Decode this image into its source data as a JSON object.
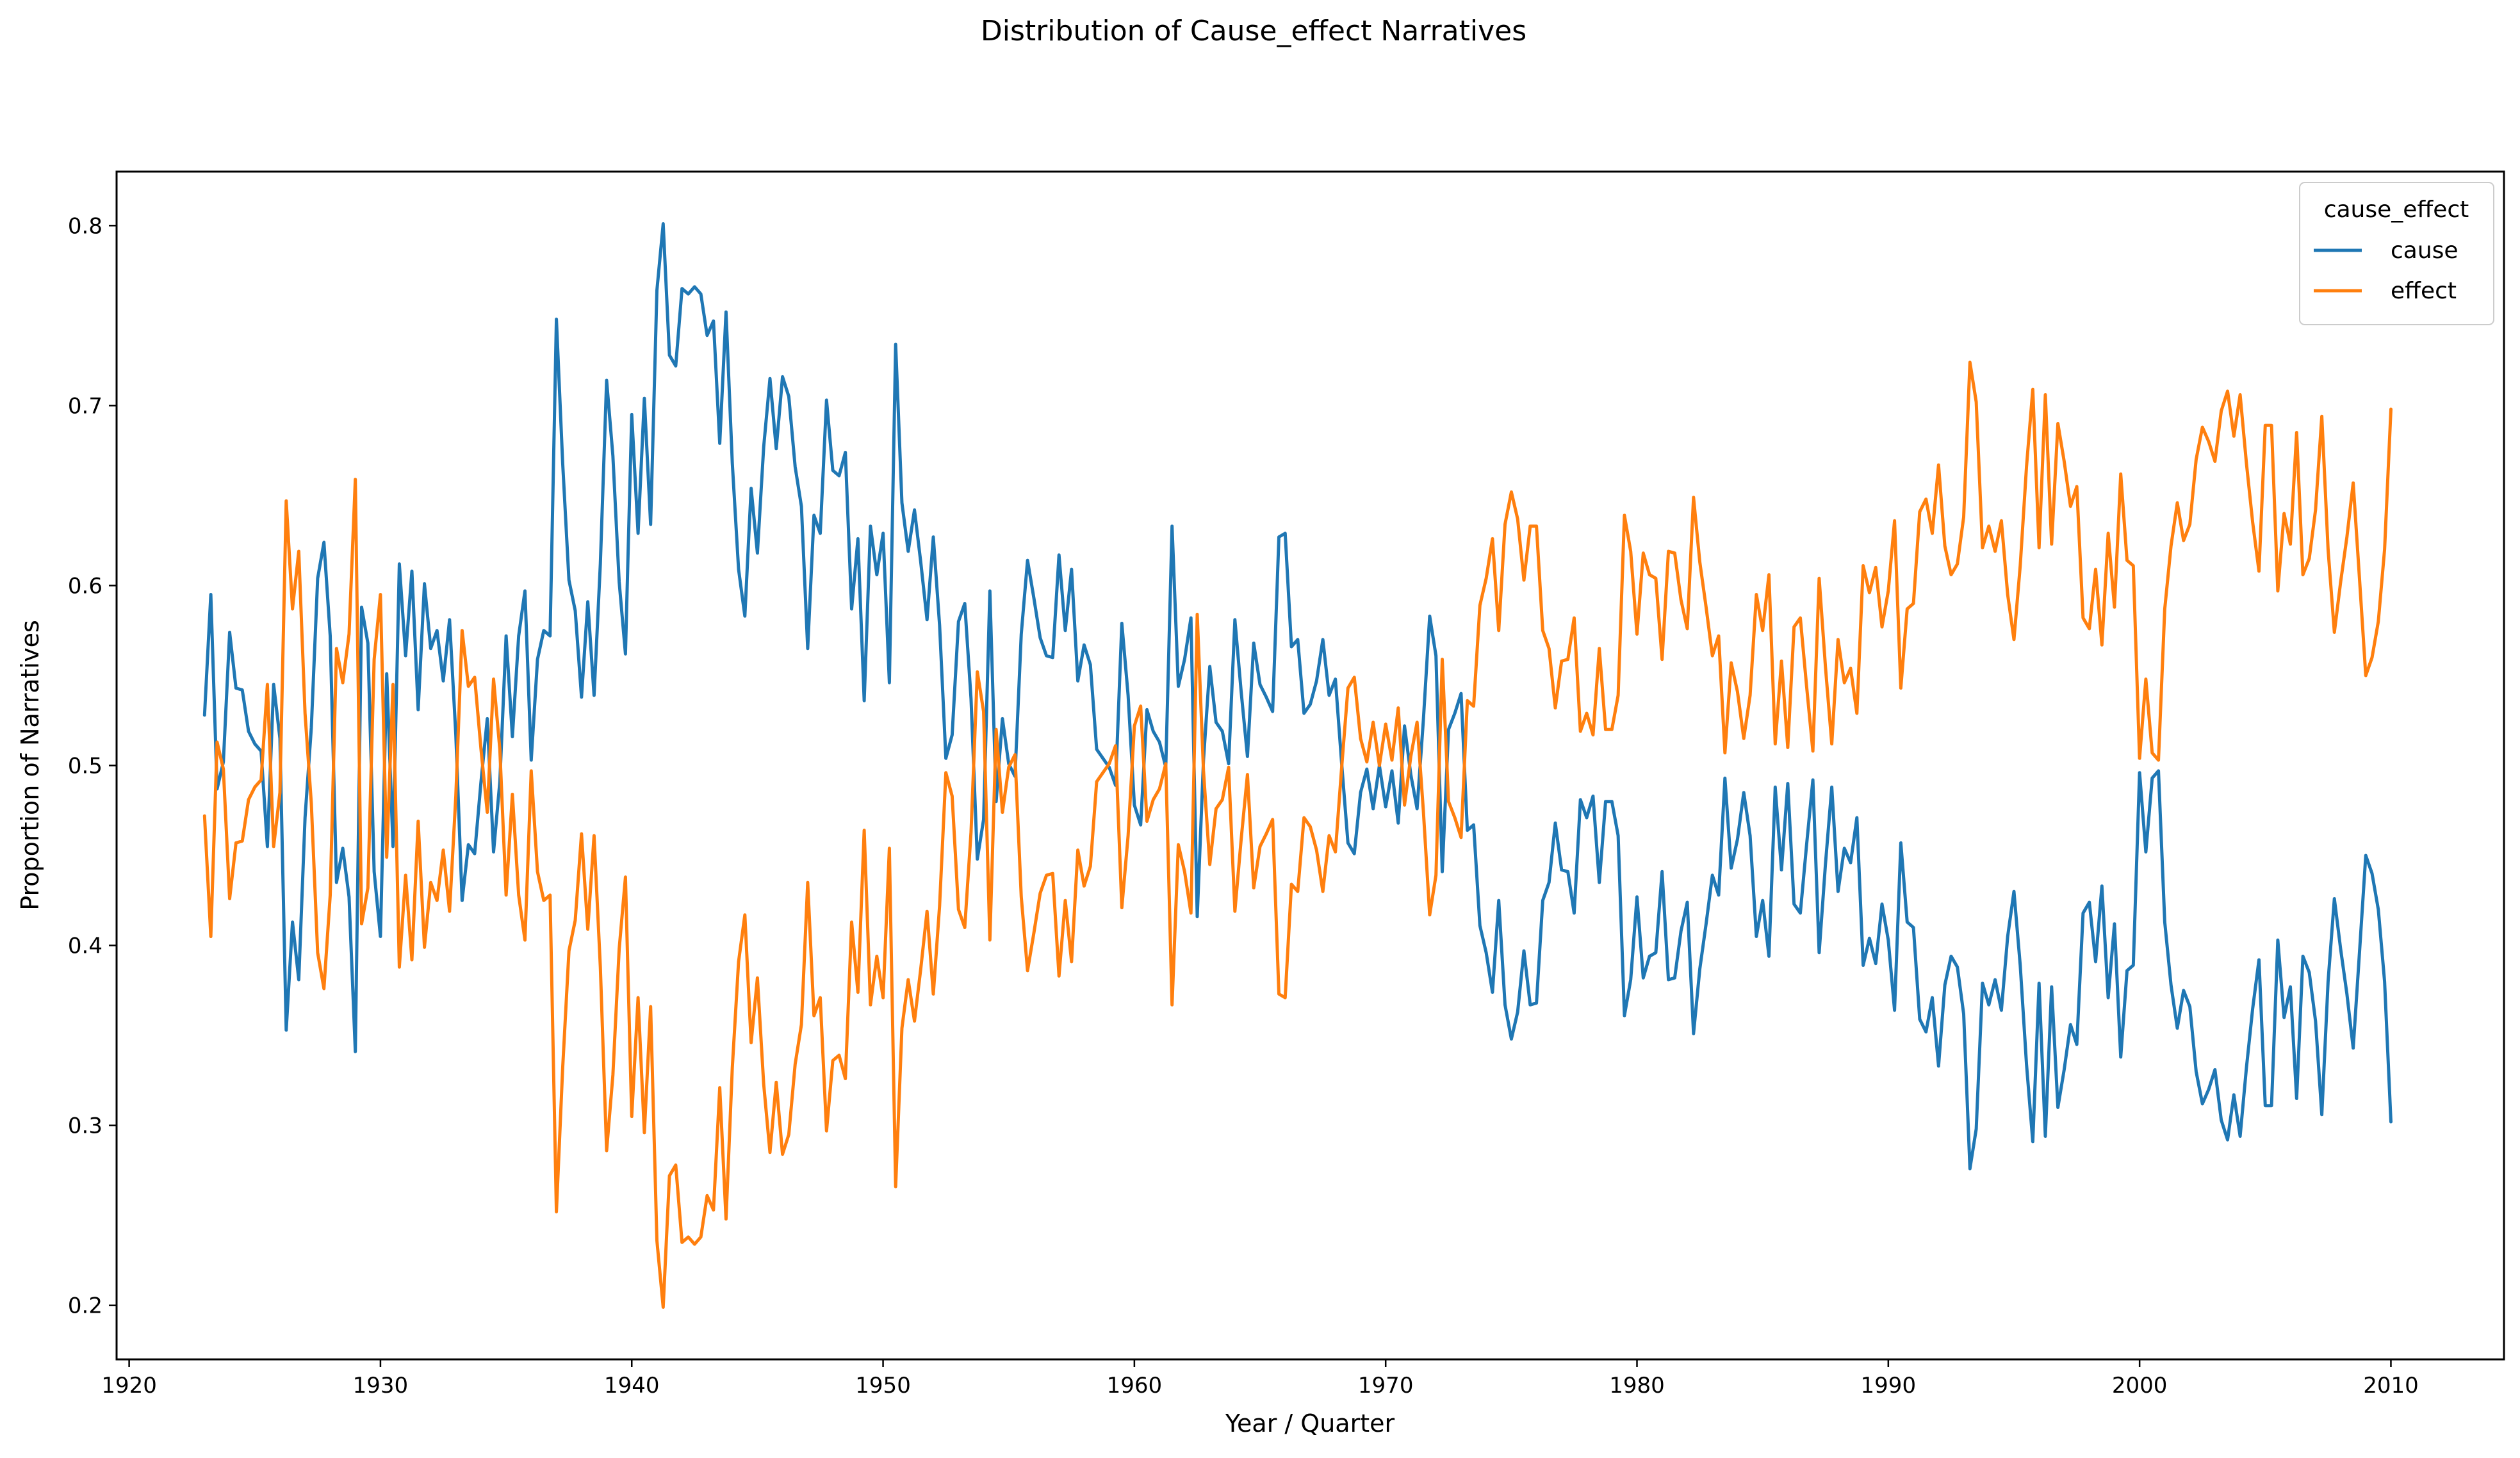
{
  "chart_data": {
    "type": "line",
    "title": "Distribution of Cause_effect Narratives",
    "xlabel": "Year / Quarter",
    "ylabel": "Proportion of Narratives",
    "xlim": [
      1919.5,
      2014.5
    ],
    "ylim": [
      0.17,
      0.83
    ],
    "xticks": [
      1920,
      1930,
      1940,
      1950,
      1960,
      1970,
      1980,
      1990,
      2000,
      2010
    ],
    "yticks": [
      0.2,
      0.3,
      0.4,
      0.5,
      0.6,
      0.7,
      0.8
    ],
    "grid": false,
    "legend": {
      "title": "cause_effect",
      "placement": "top-right"
    },
    "x_start": 1923.0,
    "x_step": 0.25,
    "series": [
      {
        "name": "cause",
        "color": "#1f77b4",
        "values": [
          0.528,
          0.595,
          0.487,
          0.502,
          0.574,
          0.543,
          0.542,
          0.519,
          0.512,
          0.508,
          0.455,
          0.545,
          0.515,
          0.353,
          0.413,
          0.381,
          0.471,
          0.521,
          0.604,
          0.624,
          0.572,
          0.435,
          0.454,
          0.427,
          0.341,
          0.588,
          0.568,
          0.441,
          0.405,
          0.551,
          0.455,
          0.612,
          0.561,
          0.608,
          0.531,
          0.601,
          0.565,
          0.575,
          0.547,
          0.581,
          0.517,
          0.425,
          0.456,
          0.451,
          0.491,
          0.526,
          0.452,
          0.491,
          0.572,
          0.516,
          0.572,
          0.597,
          0.503,
          0.559,
          0.575,
          0.572,
          0.748,
          0.668,
          0.603,
          0.586,
          0.538,
          0.591,
          0.539,
          0.612,
          0.714,
          0.672,
          0.602,
          0.562,
          0.695,
          0.629,
          0.704,
          0.634,
          0.764,
          0.801,
          0.728,
          0.722,
          0.765,
          0.762,
          0.766,
          0.762,
          0.739,
          0.747,
          0.679,
          0.752,
          0.668,
          0.609,
          0.583,
          0.654,
          0.618,
          0.677,
          0.715,
          0.676,
          0.716,
          0.705,
          0.666,
          0.644,
          0.565,
          0.639,
          0.629,
          0.703,
          0.664,
          0.661,
          0.674,
          0.587,
          0.626,
          0.536,
          0.633,
          0.606,
          0.629,
          0.546,
          0.734,
          0.646,
          0.619,
          0.642,
          0.613,
          0.581,
          0.627,
          0.578,
          0.504,
          0.517,
          0.58,
          0.59,
          0.537,
          0.448,
          0.47,
          0.597,
          0.48,
          0.526,
          0.501,
          0.494,
          0.573,
          0.614,
          0.593,
          0.571,
          0.561,
          0.56,
          0.617,
          0.575,
          0.609,
          0.547,
          0.567,
          0.556,
          0.509,
          0.504,
          0.499,
          0.489,
          0.579,
          0.539,
          0.478,
          0.467,
          0.531,
          0.519,
          0.513,
          0.499,
          0.633,
          0.544,
          0.559,
          0.582,
          0.416,
          0.503,
          0.555,
          0.524,
          0.519,
          0.501,
          0.581,
          0.541,
          0.505,
          0.568,
          0.545,
          0.538,
          0.53,
          0.627,
          0.629,
          0.566,
          0.57,
          0.529,
          0.534,
          0.547,
          0.57,
          0.539,
          0.548,
          0.501,
          0.457,
          0.451,
          0.485,
          0.498,
          0.476,
          0.5,
          0.477,
          0.497,
          0.468,
          0.522,
          0.495,
          0.476,
          0.525,
          0.583,
          0.561,
          0.441,
          0.52,
          0.529,
          0.54,
          0.464,
          0.467,
          0.411,
          0.396,
          0.374,
          0.425,
          0.367,
          0.348,
          0.363,
          0.397,
          0.367,
          0.368,
          0.425,
          0.435,
          0.468,
          0.442,
          0.441,
          0.418,
          0.481,
          0.471,
          0.483,
          0.435,
          0.48,
          0.48,
          0.461,
          0.361,
          0.381,
          0.427,
          0.382,
          0.394,
          0.396,
          0.441,
          0.381,
          0.382,
          0.408,
          0.424,
          0.351,
          0.387,
          0.412,
          0.439,
          0.428,
          0.493,
          0.443,
          0.459,
          0.485,
          0.461,
          0.405,
          0.425,
          0.394,
          0.488,
          0.442,
          0.49,
          0.423,
          0.418,
          0.456,
          0.492,
          0.396,
          0.445,
          0.488,
          0.43,
          0.454,
          0.446,
          0.471,
          0.389,
          0.404,
          0.39,
          0.423,
          0.403,
          0.364,
          0.457,
          0.413,
          0.41,
          0.359,
          0.352,
          0.371,
          0.333,
          0.378,
          0.394,
          0.388,
          0.362,
          0.276,
          0.298,
          0.379,
          0.367,
          0.381,
          0.364,
          0.405,
          0.43,
          0.389,
          0.334,
          0.291,
          0.379,
          0.294,
          0.377,
          0.31,
          0.331,
          0.356,
          0.345,
          0.418,
          0.424,
          0.391,
          0.433,
          0.371,
          0.412,
          0.338,
          0.386,
          0.389,
          0.496,
          0.452,
          0.493,
          0.497,
          0.413,
          0.378,
          0.354,
          0.375,
          0.366,
          0.33,
          0.312,
          0.32,
          0.331,
          0.303,
          0.292,
          0.317,
          0.294,
          0.332,
          0.365,
          0.392,
          0.311,
          0.311,
          0.403,
          0.36,
          0.377,
          0.315,
          0.394,
          0.385,
          0.358,
          0.306,
          0.38,
          0.426,
          0.398,
          0.373,
          0.343,
          0.396,
          0.45,
          0.44,
          0.42,
          0.38,
          0.302
        ]
      },
      {
        "name": "effect",
        "color": "#ff7f0e",
        "values": [
          0.472,
          0.405,
          0.513,
          0.498,
          0.426,
          0.457,
          0.458,
          0.481,
          0.488,
          0.492,
          0.545,
          0.455,
          0.485,
          0.647,
          0.587,
          0.619,
          0.529,
          0.479,
          0.396,
          0.376,
          0.428,
          0.565,
          0.546,
          0.573,
          0.659,
          0.412,
          0.432,
          0.559,
          0.595,
          0.449,
          0.545,
          0.388,
          0.439,
          0.392,
          0.469,
          0.399,
          0.435,
          0.425,
          0.453,
          0.419,
          0.483,
          0.575,
          0.544,
          0.549,
          0.509,
          0.474,
          0.548,
          0.509,
          0.428,
          0.484,
          0.428,
          0.403,
          0.497,
          0.441,
          0.425,
          0.428,
          0.252,
          0.332,
          0.397,
          0.414,
          0.462,
          0.409,
          0.461,
          0.388,
          0.286,
          0.328,
          0.398,
          0.438,
          0.305,
          0.371,
          0.296,
          0.366,
          0.236,
          0.199,
          0.272,
          0.278,
          0.235,
          0.238,
          0.234,
          0.238,
          0.261,
          0.253,
          0.321,
          0.248,
          0.332,
          0.391,
          0.417,
          0.346,
          0.382,
          0.323,
          0.285,
          0.324,
          0.284,
          0.295,
          0.334,
          0.356,
          0.435,
          0.361,
          0.371,
          0.297,
          0.336,
          0.339,
          0.326,
          0.413,
          0.374,
          0.464,
          0.367,
          0.394,
          0.371,
          0.454,
          0.266,
          0.354,
          0.381,
          0.358,
          0.387,
          0.419,
          0.373,
          0.422,
          0.496,
          0.483,
          0.42,
          0.41,
          0.463,
          0.552,
          0.53,
          0.403,
          0.52,
          0.474,
          0.499,
          0.506,
          0.427,
          0.386,
          0.407,
          0.429,
          0.439,
          0.44,
          0.383,
          0.425,
          0.391,
          0.453,
          0.433,
          0.444,
          0.491,
          0.496,
          0.501,
          0.511,
          0.421,
          0.461,
          0.522,
          0.533,
          0.469,
          0.481,
          0.487,
          0.501,
          0.367,
          0.456,
          0.441,
          0.418,
          0.584,
          0.497,
          0.445,
          0.476,
          0.481,
          0.499,
          0.419,
          0.459,
          0.495,
          0.432,
          0.455,
          0.462,
          0.47,
          0.373,
          0.371,
          0.434,
          0.43,
          0.471,
          0.466,
          0.453,
          0.43,
          0.461,
          0.452,
          0.499,
          0.543,
          0.549,
          0.515,
          0.502,
          0.524,
          0.5,
          0.523,
          0.503,
          0.532,
          0.478,
          0.505,
          0.524,
          0.475,
          0.417,
          0.439,
          0.559,
          0.48,
          0.471,
          0.46,
          0.536,
          0.533,
          0.589,
          0.604,
          0.626,
          0.575,
          0.634,
          0.652,
          0.637,
          0.603,
          0.633,
          0.633,
          0.575,
          0.565,
          0.532,
          0.558,
          0.559,
          0.582,
          0.519,
          0.529,
          0.517,
          0.565,
          0.52,
          0.52,
          0.539,
          0.639,
          0.619,
          0.573,
          0.618,
          0.606,
          0.604,
          0.559,
          0.619,
          0.618,
          0.592,
          0.576,
          0.649,
          0.613,
          0.588,
          0.561,
          0.572,
          0.507,
          0.557,
          0.541,
          0.515,
          0.539,
          0.595,
          0.575,
          0.606,
          0.512,
          0.558,
          0.51,
          0.577,
          0.582,
          0.544,
          0.508,
          0.604,
          0.555,
          0.512,
          0.57,
          0.546,
          0.554,
          0.529,
          0.611,
          0.596,
          0.61,
          0.577,
          0.597,
          0.636,
          0.543,
          0.587,
          0.59,
          0.641,
          0.648,
          0.629,
          0.667,
          0.622,
          0.606,
          0.612,
          0.638,
          0.724,
          0.702,
          0.621,
          0.633,
          0.619,
          0.636,
          0.595,
          0.57,
          0.611,
          0.666,
          0.709,
          0.621,
          0.706,
          0.623,
          0.69,
          0.669,
          0.644,
          0.655,
          0.582,
          0.576,
          0.609,
          0.567,
          0.629,
          0.588,
          0.662,
          0.614,
          0.611,
          0.504,
          0.548,
          0.507,
          0.503,
          0.587,
          0.622,
          0.646,
          0.625,
          0.634,
          0.67,
          0.688,
          0.68,
          0.669,
          0.697,
          0.708,
          0.683,
          0.706,
          0.668,
          0.635,
          0.608,
          0.689,
          0.689,
          0.597,
          0.64,
          0.623,
          0.685,
          0.606,
          0.615,
          0.642,
          0.694,
          0.62,
          0.574,
          0.602,
          0.627,
          0.657,
          0.604,
          0.55,
          0.56,
          0.58,
          0.62,
          0.698
        ]
      }
    ]
  }
}
